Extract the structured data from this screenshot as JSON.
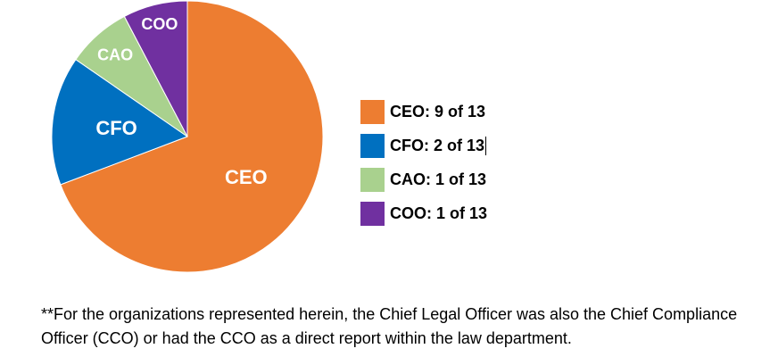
{
  "chart_data": {
    "type": "pie",
    "categories": [
      "CEO",
      "CFO",
      "CAO",
      "COO"
    ],
    "values": [
      9,
      2,
      1,
      1
    ],
    "total": 13,
    "colors": [
      "#ED7D31",
      "#0070C0",
      "#A9D18E",
      "#7030A0"
    ],
    "slice_labels": [
      "CEO",
      "CFO",
      "CAO",
      "COO"
    ],
    "legend": [
      {
        "label": "CEO: 9 of 13",
        "color": "#ED7D31"
      },
      {
        "label": "CFO: 2 of 13",
        "color": "#0070C0"
      },
      {
        "label": "CAO: 1 of 13",
        "color": "#A9D18E"
      },
      {
        "label": "COO: 1 of 13",
        "color": "#7030A0"
      }
    ],
    "legend_position": "right"
  },
  "footnote": "**For the organizations represented herein, the Chief Legal Officer was also the Chief Compliance Officer (CCO) or had the CCO as a direct report within the law department."
}
